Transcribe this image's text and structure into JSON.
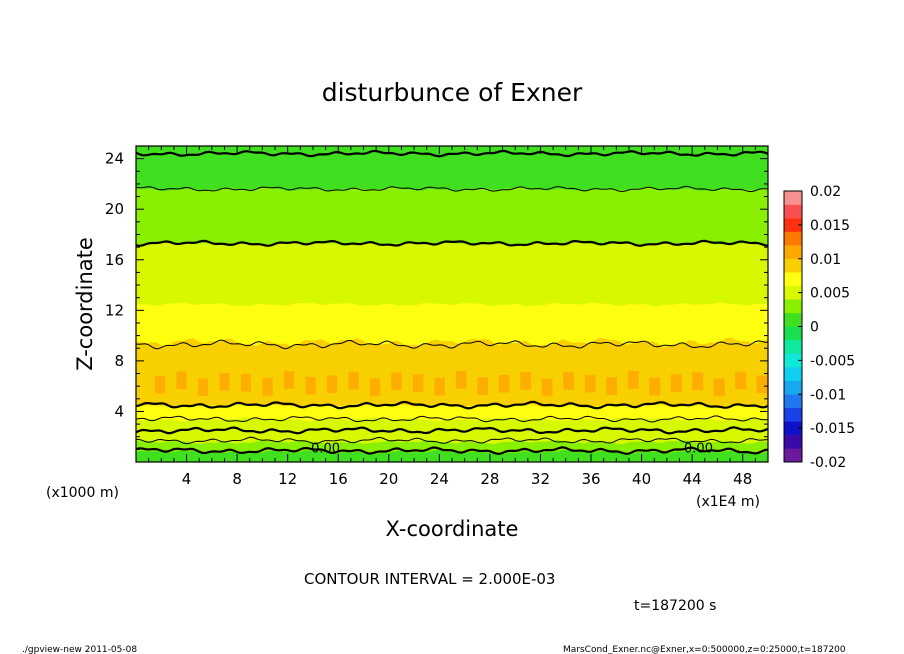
{
  "chart_data": {
    "type": "heatmap",
    "title": "disturbunce of Exner",
    "xlabel": "X-coordinate",
    "ylabel": "Z-coordinate",
    "x_unit": "(x1E4 m)",
    "y_unit": "(x1000 m)",
    "xlim": [
      0,
      50
    ],
    "ylim": [
      0,
      25
    ],
    "x_ticks": [
      "4",
      "8",
      "12",
      "16",
      "20",
      "24",
      "28",
      "32",
      "36",
      "40",
      "44",
      "48"
    ],
    "x_tick_values": [
      4,
      8,
      12,
      16,
      20,
      24,
      28,
      32,
      36,
      40,
      44,
      48
    ],
    "y_ticks": [
      "4",
      "8",
      "12",
      "16",
      "20",
      "24"
    ],
    "y_tick_values": [
      4,
      8,
      12,
      16,
      20,
      24
    ],
    "colorbar": {
      "range": [
        -0.02,
        0.02
      ],
      "tick_labels": [
        "0.02",
        "0.015",
        "0.01",
        "0.005",
        "0",
        "-0.005",
        "-0.01",
        "-0.015",
        "-0.02"
      ],
      "tick_values": [
        0.02,
        0.015,
        0.01,
        0.005,
        0,
        -0.005,
        -0.01,
        -0.015,
        -0.02
      ],
      "levels": [
        {
          "from": -0.02,
          "to": -0.018,
          "color": "#6a1a9a"
        },
        {
          "from": -0.018,
          "to": -0.016,
          "color": "#3a0aa8"
        },
        {
          "from": -0.016,
          "to": -0.014,
          "color": "#1010c8"
        },
        {
          "from": -0.014,
          "to": -0.012,
          "color": "#1a40e8"
        },
        {
          "from": -0.012,
          "to": -0.01,
          "color": "#1e78f0"
        },
        {
          "from": -0.01,
          "to": -0.008,
          "color": "#18a8f0"
        },
        {
          "from": -0.008,
          "to": -0.006,
          "color": "#10d0f0"
        },
        {
          "from": -0.006,
          "to": -0.004,
          "color": "#10e8d8"
        },
        {
          "from": -0.004,
          "to": -0.002,
          "color": "#10e8a0"
        },
        {
          "from": -0.002,
          "to": 0.0,
          "color": "#18e050"
        },
        {
          "from": 0.0,
          "to": 0.002,
          "color": "#40e020"
        },
        {
          "from": 0.002,
          "to": 0.004,
          "color": "#88f000"
        },
        {
          "from": 0.004,
          "to": 0.006,
          "color": "#d8f800"
        },
        {
          "from": 0.006,
          "to": 0.008,
          "color": "#ffff10"
        },
        {
          "from": 0.008,
          "to": 0.01,
          "color": "#f8d000"
        },
        {
          "from": 0.01,
          "to": 0.012,
          "color": "#ffa800"
        },
        {
          "from": 0.012,
          "to": 0.014,
          "color": "#ff7800"
        },
        {
          "from": 0.014,
          "to": 0.016,
          "color": "#ff3010"
        },
        {
          "from": 0.016,
          "to": 0.018,
          "color": "#f85050"
        },
        {
          "from": 0.018,
          "to": 0.02,
          "color": "#f89090"
        }
      ]
    },
    "bands": [
      {
        "z_from": 0.0,
        "z_to": 0.8,
        "value": 0.001
      },
      {
        "z_from": 0.8,
        "z_to": 1.6,
        "value": 0.003
      },
      {
        "z_from": 1.6,
        "z_to": 2.4,
        "value": 0.005
      },
      {
        "z_from": 2.4,
        "z_to": 3.4,
        "value": 0.005
      },
      {
        "z_from": 3.4,
        "z_to": 4.5,
        "value": 0.007
      },
      {
        "z_from": 4.5,
        "z_to": 9.5,
        "value": 0.009
      },
      {
        "z_from": 9.5,
        "z_to": 12.5,
        "value": 0.007
      },
      {
        "z_from": 12.5,
        "z_to": 15.5,
        "value": 0.005
      },
      {
        "z_from": 15.5,
        "z_to": 17.3,
        "value": 0.005
      },
      {
        "z_from": 17.3,
        "z_to": 19.5,
        "value": 0.003
      },
      {
        "z_from": 19.5,
        "z_to": 21.6,
        "value": 0.003
      },
      {
        "z_from": 21.6,
        "z_to": 25.0,
        "value": 0.001
      }
    ],
    "contour_levels_z": [
      0.9,
      1.7,
      2.5,
      3.4,
      4.5,
      9.3,
      17.3,
      21.6,
      24.4
    ],
    "contour_labels": [
      {
        "text": "0.00",
        "x": 15,
        "z": 1.0
      },
      {
        "text": "0.00",
        "x": 44.5,
        "z": 1.0
      }
    ],
    "contour_interval": "CONTOUR INTERVAL = 2.000E-03",
    "time": "t=187200 s"
  },
  "footer": {
    "left": "./gpview-new   2011-05-08",
    "right": "MarsCond_Exner.nc@Exner,x=0:500000,z=0:25000,t=187200"
  }
}
